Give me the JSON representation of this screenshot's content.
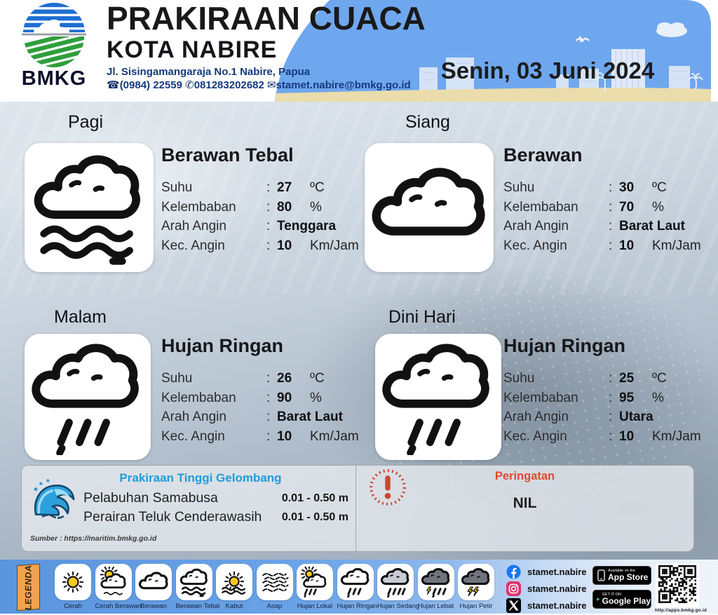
{
  "header": {
    "logo_text": "BMKG",
    "title": "PRAKIRAAN CUACA",
    "subtitle": "KOTA NABIRE",
    "address": "Jl. Sisingamangaraja No.1 Nabire, Papua",
    "phone1": "(0984) 22559",
    "phone2": "081283202682",
    "email": "stamet.nabire@bmkg.go.id",
    "date": "Senin, 03 Juni 2024"
  },
  "forecast": {
    "colon": ":",
    "labels": {
      "suhu": "Suhu",
      "kelembaban": "Kelembaban",
      "arah_angin": "Arah Angin",
      "kec_angin": "Kec. Angin"
    },
    "units": {
      "suhu": "ºC",
      "kelembaban": "%",
      "arah_angin": "",
      "kec_angin": "Km/Jam"
    },
    "periods": [
      {
        "time": "Pagi",
        "condition": "Berawan Tebal",
        "icon": "berawan-tebal",
        "suhu": "27",
        "kelembaban": "80",
        "arah_angin": "Tenggara",
        "kec_angin": "10"
      },
      {
        "time": "Siang",
        "condition": "Berawan",
        "icon": "berawan",
        "suhu": "30",
        "kelembaban": "70",
        "arah_angin": "Barat Laut",
        "kec_angin": "10"
      },
      {
        "time": "Malam",
        "condition": "Hujan Ringan",
        "icon": "hujan-ringan",
        "suhu": "26",
        "kelembaban": "90",
        "arah_angin": "Barat Laut",
        "kec_angin": "10"
      },
      {
        "time": "Dini Hari",
        "condition": "Hujan Ringan",
        "icon": "hujan-ringan",
        "suhu": "25",
        "kelembaban": "95",
        "arah_angin": "Utara",
        "kec_angin": "10"
      }
    ]
  },
  "waves": {
    "title": "Prakiraan Tinggi Gelombang",
    "rows": [
      {
        "location": "Pelabuhan Samabusa",
        "height": "0.01 - 0.50 m"
      },
      {
        "location": "Perairan Teluk Cenderawasih",
        "height": "0.01 - 0.50 m"
      }
    ],
    "source": "Sumber : https://maritim.bmkg.go.id"
  },
  "warning": {
    "title": "Peringatan",
    "value": "NIL"
  },
  "legend": {
    "title": "LEGENDA",
    "items": [
      {
        "label": "Cerah",
        "icon": "cerah"
      },
      {
        "label": "Cerah Berawan",
        "icon": "cerah-berawan"
      },
      {
        "label": "Berawan",
        "icon": "berawan"
      },
      {
        "label": "Berawan Tebal",
        "icon": "berawan-tebal"
      },
      {
        "label": "Kabut",
        "icon": "kabut"
      },
      {
        "label": "Asap",
        "icon": "asap"
      },
      {
        "label": "Hujan Lokal",
        "icon": "hujan-lokal"
      },
      {
        "label": "Hujan Ringan",
        "icon": "hujan-ringan"
      },
      {
        "label": "Hujan Sedang",
        "icon": "hujan-sedang"
      },
      {
        "label": "Hujan Lebat",
        "icon": "hujan-lebat"
      },
      {
        "label": "Hujan Petir",
        "icon": "hujan-petir"
      }
    ]
  },
  "social": {
    "items": [
      {
        "network": "facebook",
        "handle": "stamet.nabire"
      },
      {
        "network": "instagram",
        "handle": "stamet.nabire"
      },
      {
        "network": "x",
        "handle": "stamet.nabire"
      }
    ],
    "app_store": {
      "line1": "Available on the",
      "line2": "App Store"
    },
    "google_play": {
      "line1": "GET IT ON",
      "line2": "Google Play"
    },
    "qr_caption": "http://apps.bmkg.go.id"
  },
  "colors": {
    "sky": "#6fa7ee",
    "sand": "#eadcab",
    "legend_blue": "#6aa3e7",
    "wave_title_blue": "#1e9cd9",
    "warning_red": "#e0492e",
    "navy_text": "#143a7d"
  }
}
